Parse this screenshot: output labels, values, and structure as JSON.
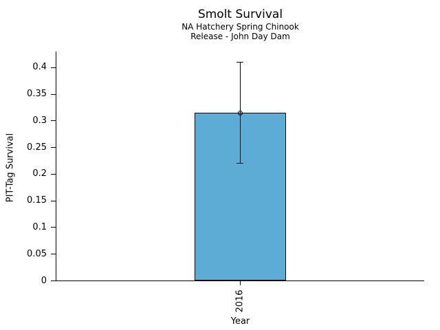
{
  "figure": {
    "title": "Smolt Survival",
    "subtitle_line1": "NA Hatchery Spring Chinook",
    "subtitle_line2": "Release - John Day Dam"
  },
  "chart_data": {
    "type": "bar",
    "title": "Smolt Survival",
    "subtitle": [
      "NA Hatchery Spring Chinook",
      "Release - John Day Dam"
    ],
    "xlabel": "Year",
    "ylabel": "PIT-Tag Survival",
    "categories": [
      "2016"
    ],
    "values": [
      0.315
    ],
    "error_bars": {
      "low": [
        0.22
      ],
      "high": [
        0.41
      ]
    },
    "y_ticks": [
      {
        "value": 0,
        "label": "0"
      },
      {
        "value": 0.05,
        "label": "0.05"
      },
      {
        "value": 0.1,
        "label": "0.1"
      },
      {
        "value": 0.15,
        "label": "0.15"
      },
      {
        "value": 0.2,
        "label": "0.2"
      },
      {
        "value": 0.25,
        "label": "0.25"
      },
      {
        "value": 0.3,
        "label": "0.3"
      },
      {
        "value": 0.35,
        "label": "0.35"
      },
      {
        "value": 0.4,
        "label": "0.4"
      }
    ],
    "ylim": [
      0,
      0.43
    ],
    "grid": false,
    "legend": null,
    "marker": "open-circle",
    "colors": {
      "bar_fill": "#5CACD6",
      "bar_edge": "#000000",
      "error": "#000000",
      "text": "#000000",
      "background": "#FFFFFF"
    }
  }
}
